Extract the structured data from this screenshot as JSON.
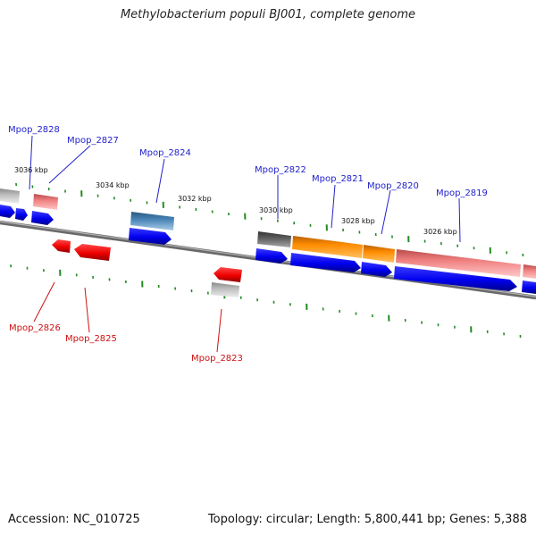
{
  "title": "Methylobacterium populi BJ001, complete genome",
  "accession": "Accession: NC_010725",
  "stats": "Topology: circular; Length: 5,800,441 bp; Genes: 5,388",
  "scale_labels": [
    "3036 kbp",
    "3034 kbp",
    "3032 kbp",
    "3030 kbp",
    "3028 kbp",
    "3026 kbp"
  ],
  "gene_labels_top": [
    "Mpop_2828",
    "Mpop_2827",
    "Mpop_2824",
    "Mpop_2822",
    "Mpop_2821",
    "Mpop_2820",
    "Mpop_2819"
  ],
  "gene_labels_bottom": [
    "Mpop_2826",
    "Mpop_2825",
    "Mpop_2823"
  ],
  "colors": {
    "label_blue": "#2222cc",
    "label_red": "#cc1111",
    "cds_blue": "#0000ee",
    "cds_red": "#ee0000",
    "gene_pink": "#f08080",
    "gene_orange": "#ff8c00",
    "gene_steel": "#4682b4",
    "gene_gray": "#bbbbbb",
    "gene_dark": "#555555",
    "tick_green": "#228b22",
    "backbone": "#808080"
  }
}
